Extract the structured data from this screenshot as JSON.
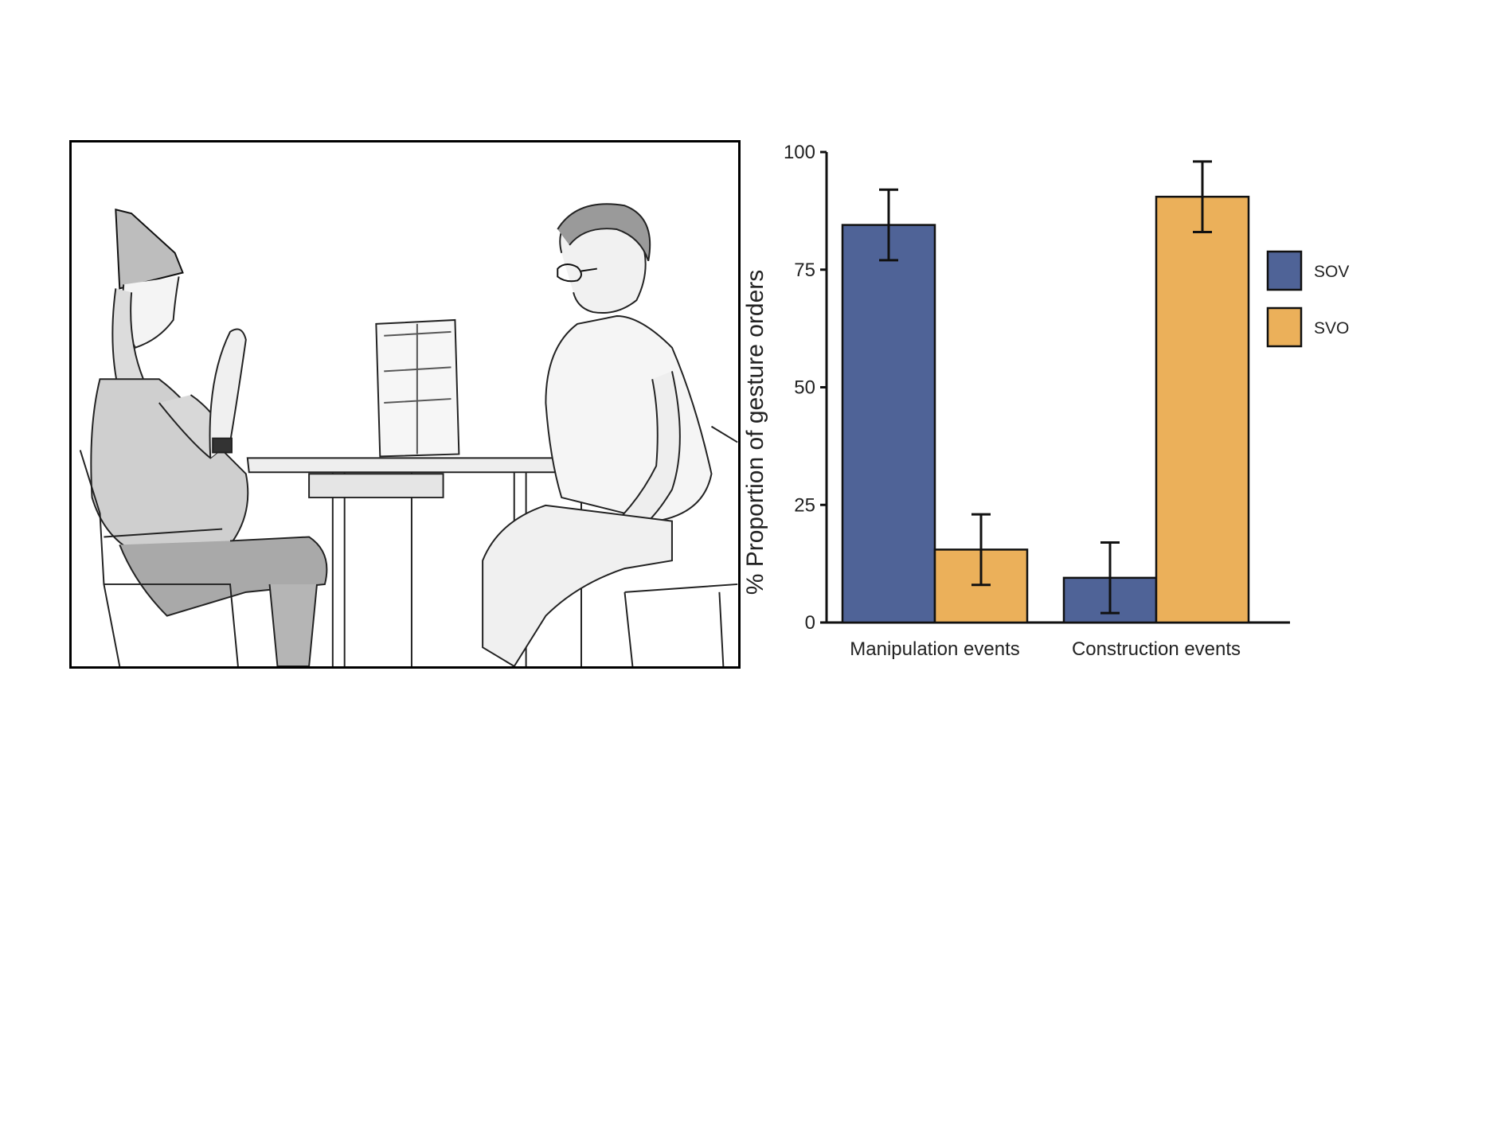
{
  "chart_data": {
    "type": "bar",
    "categories": [
      "Manipulation events",
      "Construction events"
    ],
    "series": [
      {
        "name": "SOV",
        "color": "#4f6397",
        "values": [
          84.5,
          9.5
        ],
        "err_low": [
          77,
          2
        ],
        "err_high": [
          92,
          17
        ]
      },
      {
        "name": "SVO",
        "color": "#ebb05a",
        "values": [
          15.5,
          90.5
        ],
        "err_low": [
          8,
          83
        ],
        "err_high": [
          23,
          98
        ]
      }
    ],
    "title": "",
    "xlabel": "",
    "ylabel": "% Proportion of gesture orders",
    "ylim": [
      0,
      100
    ],
    "yticks": [
      0,
      25,
      50,
      75,
      100
    ],
    "legend_position": "right",
    "grid": false
  },
  "photo": {
    "description_icon": "sketch-photo-two-people-gesturing-at-table"
  }
}
